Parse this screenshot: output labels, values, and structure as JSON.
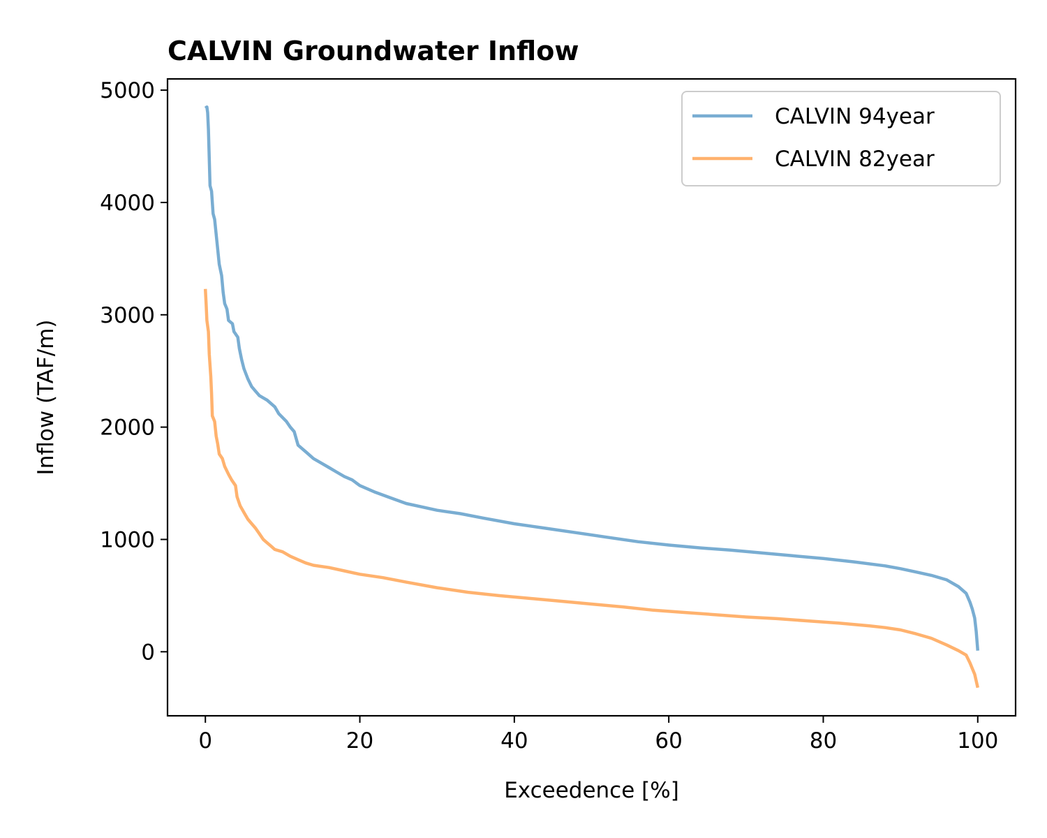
{
  "chart_data": {
    "type": "line",
    "title": "CALVIN Groundwater Inflow",
    "xlabel": "Exceedence [%]",
    "ylabel": "Inflow (TAF/m)",
    "xlim": [
      -4.9,
      104.9
    ],
    "ylim": [
      -570,
      5100
    ],
    "xticks": [
      0,
      20,
      40,
      60,
      80,
      100
    ],
    "yticks": [
      0,
      1000,
      2000,
      3000,
      4000,
      5000
    ],
    "grid": false,
    "legend": "top-right",
    "series": [
      {
        "name": "CALVIN 94year",
        "color": "#1f77b4",
        "points": [
          [
            0,
            4840
          ],
          [
            0.2,
            4850
          ],
          [
            0.3,
            4800
          ],
          [
            0.4,
            4650
          ],
          [
            0.6,
            4150
          ],
          [
            0.8,
            4100
          ],
          [
            1.0,
            3900
          ],
          [
            1.2,
            3850
          ],
          [
            1.5,
            3650
          ],
          [
            1.8,
            3450
          ],
          [
            2.1,
            3350
          ],
          [
            2.3,
            3200
          ],
          [
            2.5,
            3100
          ],
          [
            2.8,
            3050
          ],
          [
            3.0,
            2950
          ],
          [
            3.5,
            2920
          ],
          [
            3.7,
            2850
          ],
          [
            4.2,
            2800
          ],
          [
            4.4,
            2700
          ],
          [
            4.7,
            2600
          ],
          [
            5.0,
            2520
          ],
          [
            5.5,
            2430
          ],
          [
            6.0,
            2360
          ],
          [
            6.5,
            2320
          ],
          [
            7.0,
            2280
          ],
          [
            8.0,
            2240
          ],
          [
            9.0,
            2180
          ],
          [
            9.5,
            2120
          ],
          [
            10.5,
            2050
          ],
          [
            11.0,
            2000
          ],
          [
            11.5,
            1960
          ],
          [
            12.0,
            1840
          ],
          [
            12.5,
            1810
          ],
          [
            13.0,
            1780
          ],
          [
            14.0,
            1720
          ],
          [
            15.0,
            1680
          ],
          [
            16.0,
            1640
          ],
          [
            17.0,
            1600
          ],
          [
            18.0,
            1560
          ],
          [
            19.0,
            1530
          ],
          [
            20.0,
            1480
          ],
          [
            22.0,
            1420
          ],
          [
            24.0,
            1370
          ],
          [
            26.0,
            1320
          ],
          [
            28.0,
            1290
          ],
          [
            30.0,
            1260
          ],
          [
            33.0,
            1230
          ],
          [
            36.0,
            1190
          ],
          [
            40.0,
            1140
          ],
          [
            44.0,
            1100
          ],
          [
            48.0,
            1060
          ],
          [
            52.0,
            1020
          ],
          [
            56.0,
            980
          ],
          [
            60.0,
            950
          ],
          [
            64.0,
            925
          ],
          [
            68.0,
            905
          ],
          [
            72.0,
            880
          ],
          [
            76.0,
            855
          ],
          [
            80.0,
            830
          ],
          [
            84.0,
            800
          ],
          [
            88.0,
            765
          ],
          [
            90.0,
            740
          ],
          [
            92.0,
            710
          ],
          [
            94.0,
            680
          ],
          [
            96.0,
            640
          ],
          [
            97.5,
            580
          ],
          [
            98.5,
            520
          ],
          [
            99.0,
            440
          ],
          [
            99.3,
            380
          ],
          [
            99.6,
            300
          ],
          [
            99.8,
            180
          ],
          [
            100.0,
            10
          ]
        ]
      },
      {
        "name": "CALVIN 82year",
        "color": "#ff7f0e",
        "points": [
          [
            0,
            3230
          ],
          [
            0.1,
            3100
          ],
          [
            0.2,
            2950
          ],
          [
            0.4,
            2850
          ],
          [
            0.5,
            2650
          ],
          [
            0.7,
            2450
          ],
          [
            0.8,
            2300
          ],
          [
            0.9,
            2100
          ],
          [
            1.2,
            2050
          ],
          [
            1.4,
            1920
          ],
          [
            1.6,
            1850
          ],
          [
            1.8,
            1760
          ],
          [
            2.2,
            1720
          ],
          [
            2.5,
            1650
          ],
          [
            3.0,
            1580
          ],
          [
            3.4,
            1530
          ],
          [
            3.9,
            1480
          ],
          [
            4.1,
            1380
          ],
          [
            4.5,
            1300
          ],
          [
            5.0,
            1240
          ],
          [
            5.5,
            1180
          ],
          [
            6.0,
            1140
          ],
          [
            6.5,
            1100
          ],
          [
            7.0,
            1050
          ],
          [
            7.5,
            1000
          ],
          [
            8.0,
            970
          ],
          [
            8.5,
            940
          ],
          [
            9.0,
            910
          ],
          [
            10.0,
            890
          ],
          [
            11.0,
            850
          ],
          [
            12.0,
            820
          ],
          [
            13.0,
            790
          ],
          [
            14.0,
            770
          ],
          [
            16.0,
            750
          ],
          [
            18.0,
            720
          ],
          [
            20.0,
            690
          ],
          [
            23.0,
            660
          ],
          [
            26.0,
            620
          ],
          [
            30.0,
            570
          ],
          [
            34.0,
            530
          ],
          [
            38.0,
            500
          ],
          [
            42.0,
            475
          ],
          [
            46.0,
            450
          ],
          [
            50.0,
            425
          ],
          [
            54.0,
            400
          ],
          [
            58.0,
            370
          ],
          [
            62.0,
            350
          ],
          [
            66.0,
            330
          ],
          [
            70.0,
            310
          ],
          [
            74.0,
            295
          ],
          [
            78.0,
            275
          ],
          [
            82.0,
            255
          ],
          [
            86.0,
            230
          ],
          [
            88.0,
            215
          ],
          [
            90.0,
            195
          ],
          [
            92.0,
            160
          ],
          [
            94.0,
            120
          ],
          [
            96.0,
            60
          ],
          [
            97.5,
            10
          ],
          [
            98.5,
            -30
          ],
          [
            99.0,
            -100
          ],
          [
            99.3,
            -150
          ],
          [
            99.6,
            -200
          ],
          [
            99.8,
            -260
          ],
          [
            100.0,
            -320
          ]
        ]
      }
    ]
  }
}
